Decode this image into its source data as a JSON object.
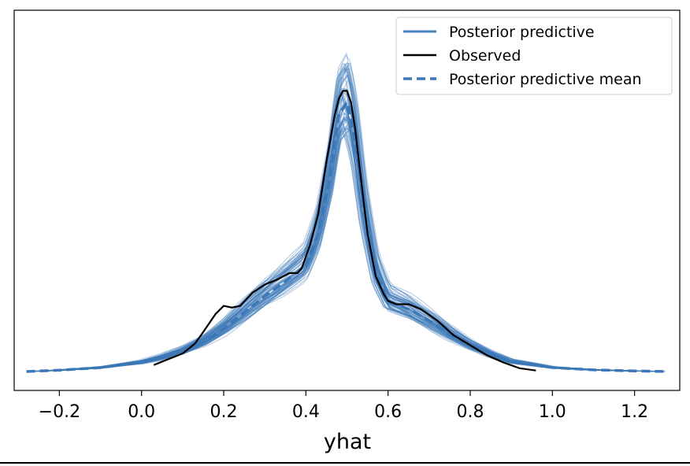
{
  "chart_data": {
    "type": "line",
    "xlabel": "yhat",
    "ylabel": "",
    "title": "",
    "xlim": [
      -0.31,
      1.31
    ],
    "ylim": [
      0,
      1.0
    ],
    "x_ticks": [
      -0.2,
      0.0,
      0.2,
      0.4,
      0.6,
      0.8,
      1.0,
      1.2
    ],
    "x_tick_labels": [
      "−0.2",
      "0.0",
      "0.2",
      "0.4",
      "0.6",
      "0.8",
      "1.0",
      "1.2"
    ],
    "y_ticks_shown": false,
    "grid": false,
    "legend_position": "top-right",
    "legend": [
      {
        "label": "Posterior predictive",
        "style": "solid",
        "color": "#4a7fbd"
      },
      {
        "label": "Observed",
        "style": "solid",
        "color": "#000000"
      },
      {
        "label": "Posterior predictive mean",
        "style": "dashed",
        "color": "#3c78b8"
      }
    ],
    "series": [
      {
        "name": "Posterior predictive mean",
        "style": "dashed",
        "color": "#3c78b8",
        "x": [
          -0.28,
          -0.2,
          -0.1,
          0.0,
          0.05,
          0.1,
          0.15,
          0.2,
          0.25,
          0.3,
          0.35,
          0.4,
          0.43,
          0.46,
          0.48,
          0.5,
          0.52,
          0.54,
          0.57,
          0.6,
          0.65,
          0.7,
          0.75,
          0.8,
          0.85,
          0.9,
          1.0,
          1.1,
          1.2,
          1.28
        ],
        "y": [
          0.0,
          0.004,
          0.012,
          0.028,
          0.042,
          0.062,
          0.09,
          0.13,
          0.18,
          0.23,
          0.275,
          0.325,
          0.42,
          0.6,
          0.78,
          0.82,
          0.7,
          0.5,
          0.3,
          0.215,
          0.19,
          0.155,
          0.115,
          0.08,
          0.052,
          0.03,
          0.012,
          0.005,
          0.002,
          0.0
        ]
      },
      {
        "name": "Observed",
        "style": "solid",
        "color": "#000000",
        "x": [
          0.03,
          0.06,
          0.1,
          0.13,
          0.15,
          0.18,
          0.2,
          0.22,
          0.24,
          0.27,
          0.3,
          0.33,
          0.36,
          0.38,
          0.39,
          0.41,
          0.43,
          0.45,
          0.47,
          0.48,
          0.49,
          0.5,
          0.51,
          0.52,
          0.53,
          0.55,
          0.57,
          0.59,
          0.6,
          0.62,
          0.65,
          0.68,
          0.72,
          0.76,
          0.8,
          0.84,
          0.88,
          0.92,
          0.96
        ],
        "y": [
          0.02,
          0.035,
          0.055,
          0.085,
          0.12,
          0.175,
          0.2,
          0.195,
          0.2,
          0.24,
          0.265,
          0.28,
          0.3,
          0.3,
          0.315,
          0.385,
          0.48,
          0.64,
          0.78,
          0.83,
          0.855,
          0.855,
          0.82,
          0.74,
          0.63,
          0.42,
          0.29,
          0.235,
          0.215,
          0.205,
          0.205,
          0.19,
          0.155,
          0.11,
          0.08,
          0.05,
          0.028,
          0.01,
          0.003
        ]
      }
    ]
  }
}
